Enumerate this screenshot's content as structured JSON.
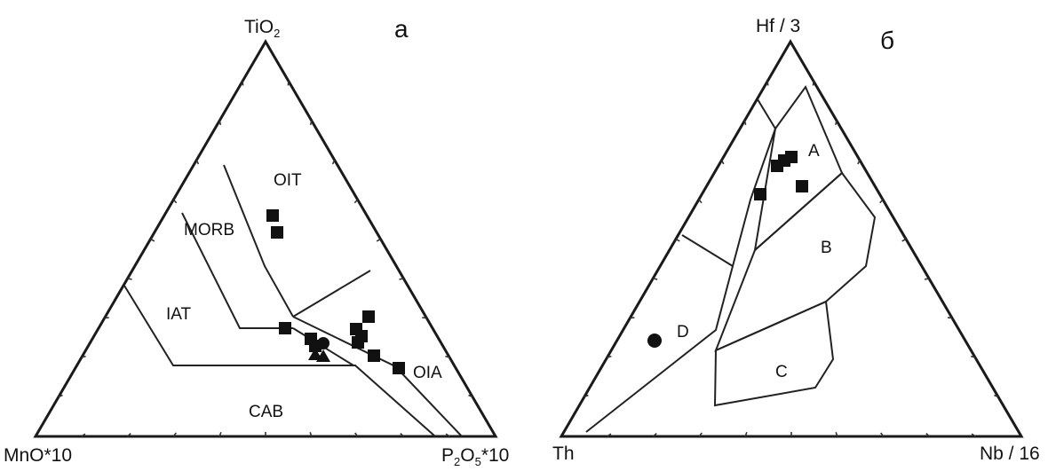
{
  "panels": [
    {
      "id": "a",
      "panel_label": "а",
      "vertices": {
        "top": "TiO",
        "top_sub": "2",
        "left": "MnO*10",
        "right_main": "P",
        "right_sub1": "2",
        "right_mid": "O",
        "right_sub2": "5",
        "right_tail": "*10"
      },
      "fields": [
        "OIT",
        "MORB",
        "IAT",
        "CAB",
        "OIA"
      ],
      "symbols": [
        "square",
        "triangle",
        "circle"
      ]
    },
    {
      "id": "b",
      "panel_label": "б",
      "vertices": {
        "top": "Hf / 3",
        "left": "Th",
        "right": "Nb / 16"
      },
      "fields": [
        "A",
        "B",
        "C",
        "D"
      ],
      "symbols": [
        "square",
        "circle"
      ]
    }
  ]
}
